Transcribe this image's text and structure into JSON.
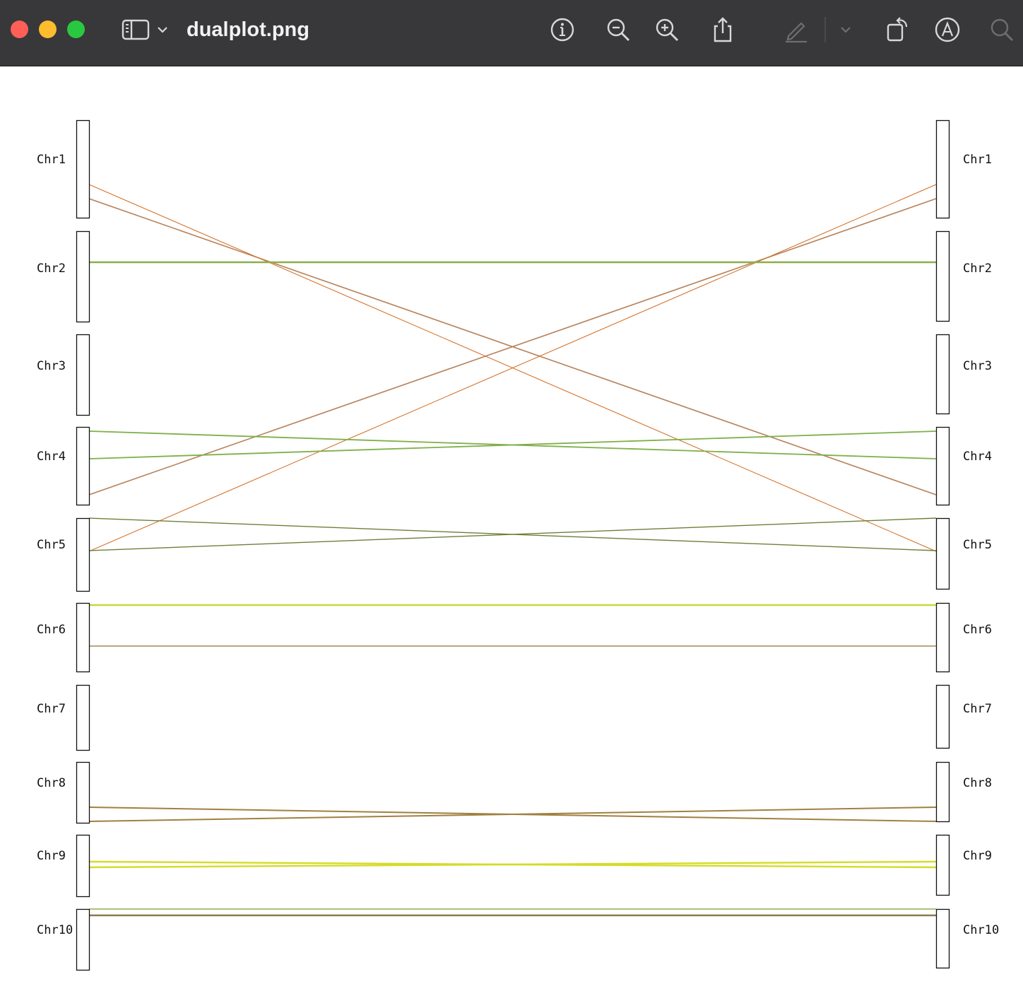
{
  "window": {
    "title": "dualplot.png"
  },
  "toolbar": {
    "icons": [
      "sidebar-toggle-icon",
      "chevron-down-icon",
      "info-icon",
      "zoom-out-icon",
      "zoom-in-icon",
      "share-icon",
      "markup-pen-icon",
      "markup-options-chevron-icon",
      "rotate-icon",
      "annotate-icon",
      "search-icon"
    ]
  },
  "chart_data": {
    "type": "dual synteny plot",
    "left_chromosomes": [
      "Chr1",
      "Chr2",
      "Chr3",
      "Chr4",
      "Chr5",
      "Chr6",
      "Chr7",
      "Chr8",
      "Chr9",
      "Chr10"
    ],
    "right_chromosomes": [
      "Chr1",
      "Chr2",
      "Chr3",
      "Chr4",
      "Chr5",
      "Chr6",
      "Chr7",
      "Chr8",
      "Chr9",
      "Chr10"
    ],
    "links": [
      {
        "from": "Chr1",
        "to": "Chr4",
        "color": "#b8825a"
      },
      {
        "from": "Chr1",
        "to": "Chr5",
        "color": "#d2691e"
      },
      {
        "from": "Chr4",
        "to": "Chr1",
        "color": "#b8825a"
      },
      {
        "from": "Chr5",
        "to": "Chr1",
        "color": "#d2691e"
      },
      {
        "from": "Chr2",
        "to": "Chr2",
        "color": "#8ab04a"
      },
      {
        "from": "Chr4",
        "to": "Chr4",
        "color": "#7fb04a"
      },
      {
        "from": "Chr5",
        "to": "Chr5",
        "color": "#6e7f3a"
      },
      {
        "from": "Chr6",
        "to": "Chr6",
        "color": "#c8d83a"
      },
      {
        "from": "Chr6",
        "to": "Chr6",
        "color": "#a08a5a"
      },
      {
        "from": "Chr8",
        "to": "Chr8",
        "color": "#a08040"
      },
      {
        "from": "Chr9",
        "to": "Chr9",
        "color": "#d4dc28"
      },
      {
        "from": "Chr10",
        "to": "Chr10",
        "color": "#8fb050"
      },
      {
        "from": "Chr10",
        "to": "Chr10",
        "color": "#8a7a50"
      }
    ]
  }
}
